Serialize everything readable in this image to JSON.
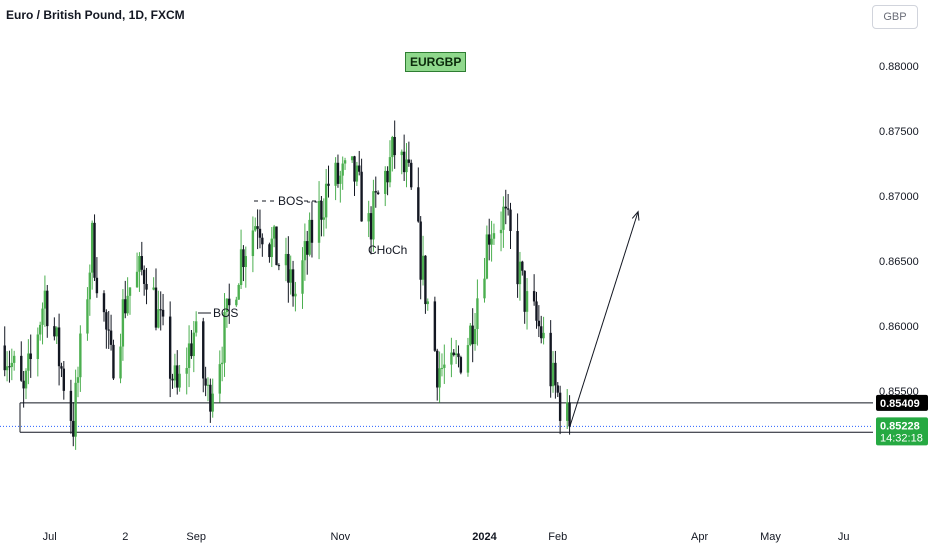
{
  "title": "Euro / British Pound, 1D, FXCM",
  "currency": "GBP",
  "symbol_badge": "EURGBP",
  "annotations": {
    "bos_1": "BOS - -",
    "bos_2": "BOS",
    "choch": "CHoCh"
  },
  "colors": {
    "up": "#4caf50",
    "down": "#131722",
    "last_price_bg": "#26a942",
    "level_bg": "#000000",
    "axis_text": "#131722"
  },
  "chart_data": {
    "type": "candlestick",
    "title": "Euro / British Pound, 1D, FXCM",
    "ylim": [
      0.8475,
      0.8825
    ],
    "y_ticks": [
      0.855,
      0.86,
      0.865,
      0.87,
      0.875,
      0.88
    ],
    "y_tick_labels": [
      "0.85500",
      "0.86000",
      "0.86500",
      "0.87000",
      "0.87500",
      "0.88000"
    ],
    "x_labels": [
      {
        "label": "Jul",
        "date": "2023-07-01"
      },
      {
        "label": "2",
        "date": "2023-08-02"
      },
      {
        "label": "Sep",
        "date": "2023-09-01"
      },
      {
        "label": "Nov",
        "date": "2023-11-01"
      },
      {
        "label": "2024",
        "date": "2024-01-01"
      },
      {
        "label": "Feb",
        "date": "2024-02-01"
      },
      {
        "label": "Apr",
        "date": "2024-04-01"
      },
      {
        "label": "May",
        "date": "2024-05-01"
      },
      {
        "label": "Ju",
        "date": "2024-06-01"
      }
    ],
    "xlim": [
      "2023-06-10",
      "2024-06-10"
    ],
    "anchors": [
      {
        "date": "2023-06-12",
        "price": 0.8585
      },
      {
        "date": "2023-06-20",
        "price": 0.8545
      },
      {
        "date": "2023-06-29",
        "price": 0.8625
      },
      {
        "date": "2023-07-11",
        "price": 0.8525
      },
      {
        "date": "2023-07-19",
        "price": 0.8665
      },
      {
        "date": "2023-07-27",
        "price": 0.857
      },
      {
        "date": "2023-08-03",
        "price": 0.8628
      },
      {
        "date": "2023-08-11",
        "price": 0.8645
      },
      {
        "date": "2023-08-18",
        "price": 0.859
      },
      {
        "date": "2023-08-24",
        "price": 0.8548
      },
      {
        "date": "2023-08-31",
        "price": 0.8595
      },
      {
        "date": "2023-09-06",
        "price": 0.8545
      },
      {
        "date": "2023-09-13",
        "price": 0.8595
      },
      {
        "date": "2023-09-20",
        "price": 0.8655
      },
      {
        "date": "2023-09-27",
        "price": 0.8685
      },
      {
        "date": "2023-10-06",
        "price": 0.865
      },
      {
        "date": "2023-10-13",
        "price": 0.8625
      },
      {
        "date": "2023-10-20",
        "price": 0.867
      },
      {
        "date": "2023-10-27",
        "price": 0.871
      },
      {
        "date": "2023-11-07",
        "price": 0.8715
      },
      {
        "date": "2023-11-13",
        "price": 0.8675
      },
      {
        "date": "2023-11-20",
        "price": 0.8715
      },
      {
        "date": "2023-11-24",
        "price": 0.8735
      },
      {
        "date": "2023-11-30",
        "price": 0.871
      },
      {
        "date": "2023-12-06",
        "price": 0.864
      },
      {
        "date": "2023-12-12",
        "price": 0.857
      },
      {
        "date": "2023-12-18",
        "price": 0.8562
      },
      {
        "date": "2023-12-26",
        "price": 0.8595
      },
      {
        "date": "2024-01-03",
        "price": 0.8675
      },
      {
        "date": "2024-01-09",
        "price": 0.8685
      },
      {
        "date": "2024-01-15",
        "price": 0.8645
      },
      {
        "date": "2024-01-19",
        "price": 0.8615
      },
      {
        "date": "2024-01-25",
        "price": 0.8595
      },
      {
        "date": "2024-01-30",
        "price": 0.8555
      },
      {
        "date": "2024-02-03",
        "price": 0.8537
      },
      {
        "date": "2024-02-06",
        "price": 0.8522
      }
    ],
    "levels": [
      {
        "name": "upper-support",
        "value": 0.85409,
        "label": "0.85409"
      },
      {
        "name": "lower-support",
        "value": 0.85183,
        "label": "0.85183"
      }
    ],
    "last_price": {
      "value": 0.85228,
      "label": "0.85228",
      "countdown": "14:32:18"
    },
    "projection": {
      "from": {
        "date": "2024-02-06",
        "price": 0.8522
      },
      "to": {
        "date": "2024-03-06",
        "price": 0.8688
      }
    }
  }
}
